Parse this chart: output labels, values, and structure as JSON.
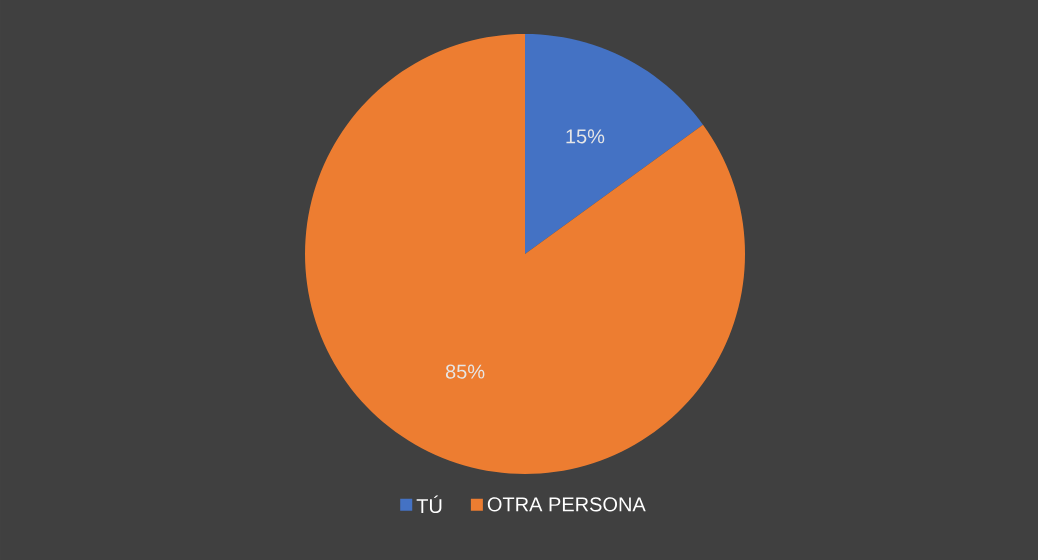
{
  "chart_data": {
    "type": "pie",
    "categories": [
      "TÚ",
      "OTRA PERSONA"
    ],
    "values": [
      15,
      85
    ],
    "colors": [
      "#4472c4",
      "#ed7d31"
    ],
    "value_labels": [
      "15%",
      "85%"
    ],
    "legend": "bottom"
  }
}
